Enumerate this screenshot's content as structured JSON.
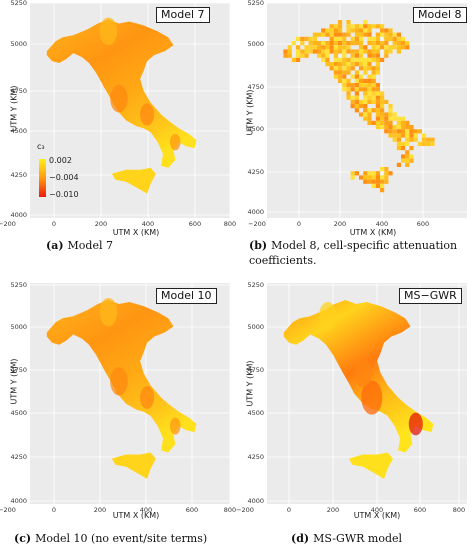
{
  "figure": {
    "panels": [
      {
        "id": "a",
        "title": "Model 7",
        "caption_label": "(a)",
        "caption_text": "Model 7",
        "xlabel": "UTM X (KM)",
        "ylabel": "UTM Y (KM)",
        "xticks": [
          "−200",
          "0",
          "200",
          "400",
          "600",
          "800"
        ],
        "yticks": [
          "5250",
          "5000",
          "4750",
          "4500",
          "4250",
          "4000"
        ],
        "style": "smooth",
        "legend": {
          "title": "c₃",
          "ticks": [
            "0.002",
            "−0.004",
            "−0.010"
          ]
        }
      },
      {
        "id": "b",
        "title": "Model 8",
        "caption_label": "(b)",
        "caption_text": "Model 8, cell-specific attenuation coefficients.",
        "xlabel": "UTM X (KM)",
        "ylabel": "UTM Y (KM)",
        "xticks": [
          "−200",
          "0",
          "200",
          "400",
          "600"
        ],
        "yticks": [
          "5250",
          "5000",
          "4750",
          "4500",
          "4250",
          "4000"
        ],
        "style": "cells"
      },
      {
        "id": "c",
        "title": "Model 10",
        "caption_label": "(c)",
        "caption_text": "Model 10 (no event/site terms)",
        "xlabel": "UTM X (KM)",
        "ylabel": "UTM Y (KM)",
        "xticks": [
          "−200",
          "0",
          "200",
          "400",
          "600",
          "800"
        ],
        "yticks": [
          "5250",
          "5000",
          "4750",
          "4500",
          "4250",
          "4000"
        ],
        "style": "smooth"
      },
      {
        "id": "d",
        "title": "MS−GWR",
        "caption_label": "(d)",
        "caption_text": "MS-GWR model",
        "xlabel": "UTM X (KM)",
        "ylabel": "UTM Y (KM)",
        "xticks": [
          "−200",
          "0",
          "200",
          "400",
          "600",
          "800"
        ],
        "yticks": [
          "5250",
          "5000",
          "4750",
          "4500",
          "4250",
          "4000"
        ],
        "style": "gwr"
      }
    ]
  },
  "chart_data": [
    {
      "type": "heatmap",
      "title": "Model 7",
      "xlabel": "UTM X (KM)",
      "ylabel": "UTM Y (KM)",
      "xlim": [
        -250,
        830
      ],
      "ylim": [
        3990,
        5300
      ],
      "colorbar": {
        "label": "c3",
        "ticks": [
          0.002,
          -0.004,
          -0.01
        ],
        "colors": [
          "#ffef1a",
          "#ff9a10",
          "#ee1a0a"
        ]
      }
    },
    {
      "type": "heatmap",
      "title": "Model 8",
      "xlabel": "UTM X (KM)",
      "ylabel": "UTM Y (KM)",
      "xlim": [
        -250,
        790
      ],
      "ylim": [
        3990,
        5300
      ]
    },
    {
      "type": "heatmap",
      "title": "Model 10",
      "xlabel": "UTM X (KM)",
      "ylabel": "UTM Y (KM)",
      "xlim": [
        -250,
        830
      ],
      "ylim": [
        3990,
        5300
      ]
    },
    {
      "type": "heatmap",
      "title": "MS−GWR",
      "xlabel": "UTM X (KM)",
      "ylabel": "UTM Y (KM)",
      "xlim": [
        -250,
        830
      ],
      "ylim": [
        3990,
        5300
      ]
    }
  ]
}
